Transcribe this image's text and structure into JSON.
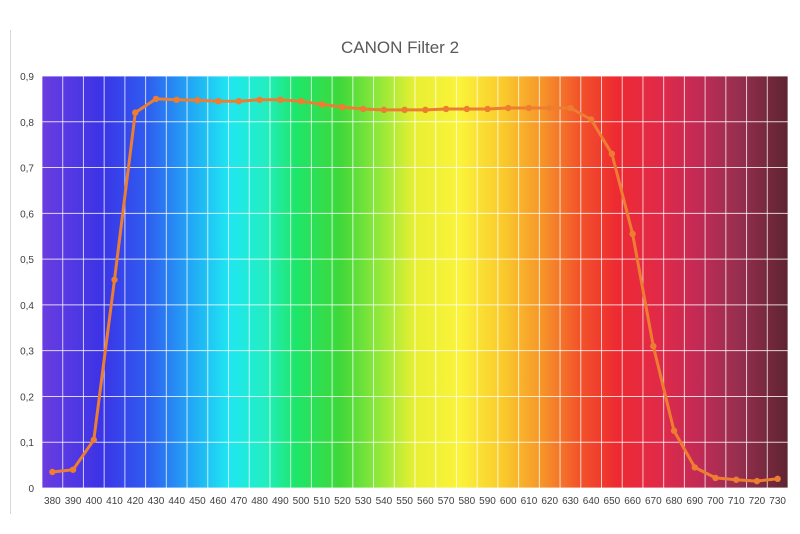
{
  "chart_data": {
    "type": "line",
    "title": "CANON Filter 2",
    "xlabel": "",
    "ylabel": "",
    "x": [
      380,
      390,
      400,
      410,
      420,
      430,
      440,
      450,
      460,
      470,
      480,
      490,
      500,
      510,
      520,
      530,
      540,
      550,
      560,
      570,
      580,
      590,
      600,
      610,
      620,
      630,
      640,
      650,
      660,
      670,
      680,
      690,
      700,
      710,
      720,
      730
    ],
    "y_ticks": [
      "0",
      "0,1",
      "0,2",
      "0,3",
      "0,4",
      "0,5",
      "0,6",
      "0,7",
      "0,8",
      "0,9"
    ],
    "ylim": [
      0,
      0.9
    ],
    "grid": true,
    "background": "visible spectrum gradient (violet to deep red)",
    "series": [
      {
        "color": "#ed7d31",
        "values": [
          0.035,
          0.04,
          0.105,
          0.455,
          0.82,
          0.85,
          0.848,
          0.847,
          0.845,
          0.845,
          0.848,
          0.848,
          0.845,
          0.838,
          0.832,
          0.828,
          0.826,
          0.826,
          0.826,
          0.828,
          0.828,
          0.828,
          0.83,
          0.83,
          0.83,
          0.83,
          0.805,
          0.73,
          0.555,
          0.31,
          0.125,
          0.045,
          0.022,
          0.018,
          0.015,
          0.02
        ]
      }
    ]
  }
}
